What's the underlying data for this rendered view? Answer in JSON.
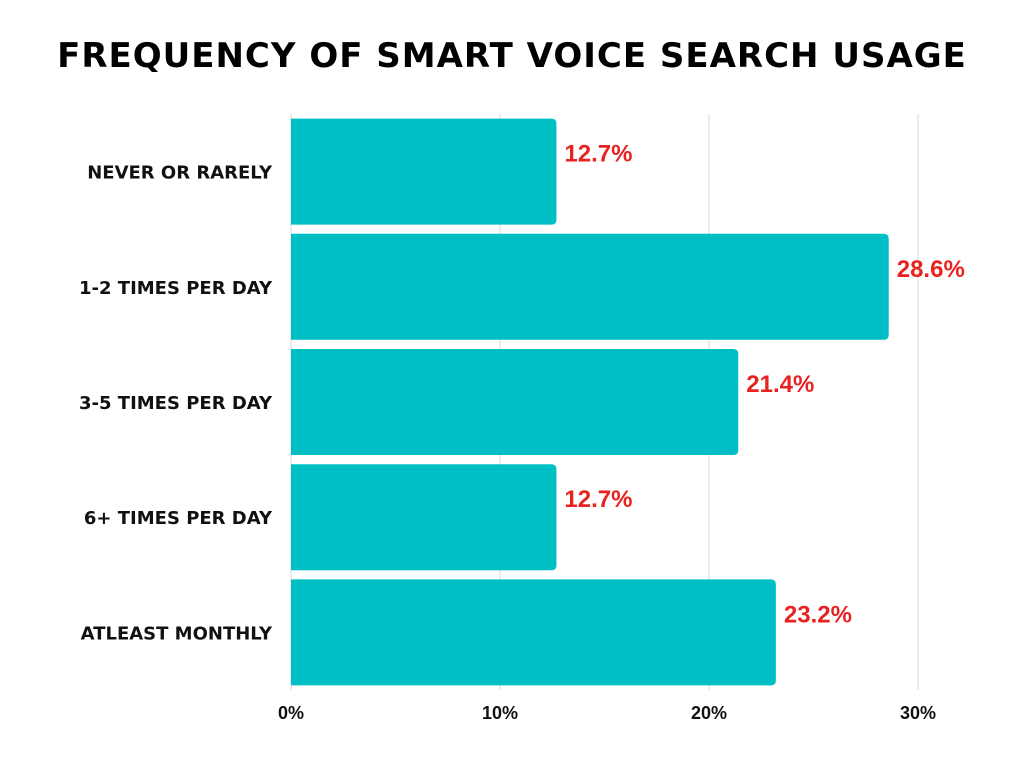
{
  "chart_data": {
    "type": "bar",
    "orientation": "horizontal",
    "title": "FREQUENCY OF SMART VOICE SEARCH USAGE",
    "categories": [
      "NEVER OR RARELY",
      "1-2 TIMES PER DAY",
      "3-5 TIMES PER DAY",
      "6+ TIMES PER DAY",
      "ATLEAST MONTHLY"
    ],
    "values": [
      12.7,
      28.6,
      21.4,
      12.7,
      23.2
    ],
    "data_labels": [
      "12.7%",
      "28.6%",
      "21.4%",
      "12.7%",
      "23.2%"
    ],
    "xlim": [
      0,
      30
    ],
    "x_ticks": [
      0,
      10,
      20,
      30
    ],
    "x_tick_labels": [
      "0%",
      "10%",
      "20%",
      "30%"
    ],
    "xlabel": "",
    "ylabel": "",
    "grid": true,
    "legend": "none",
    "colors": {
      "bar": "#00BFC4",
      "value_label": "#E8231F",
      "grid": "#D9D9D9",
      "text": "#111111"
    }
  }
}
